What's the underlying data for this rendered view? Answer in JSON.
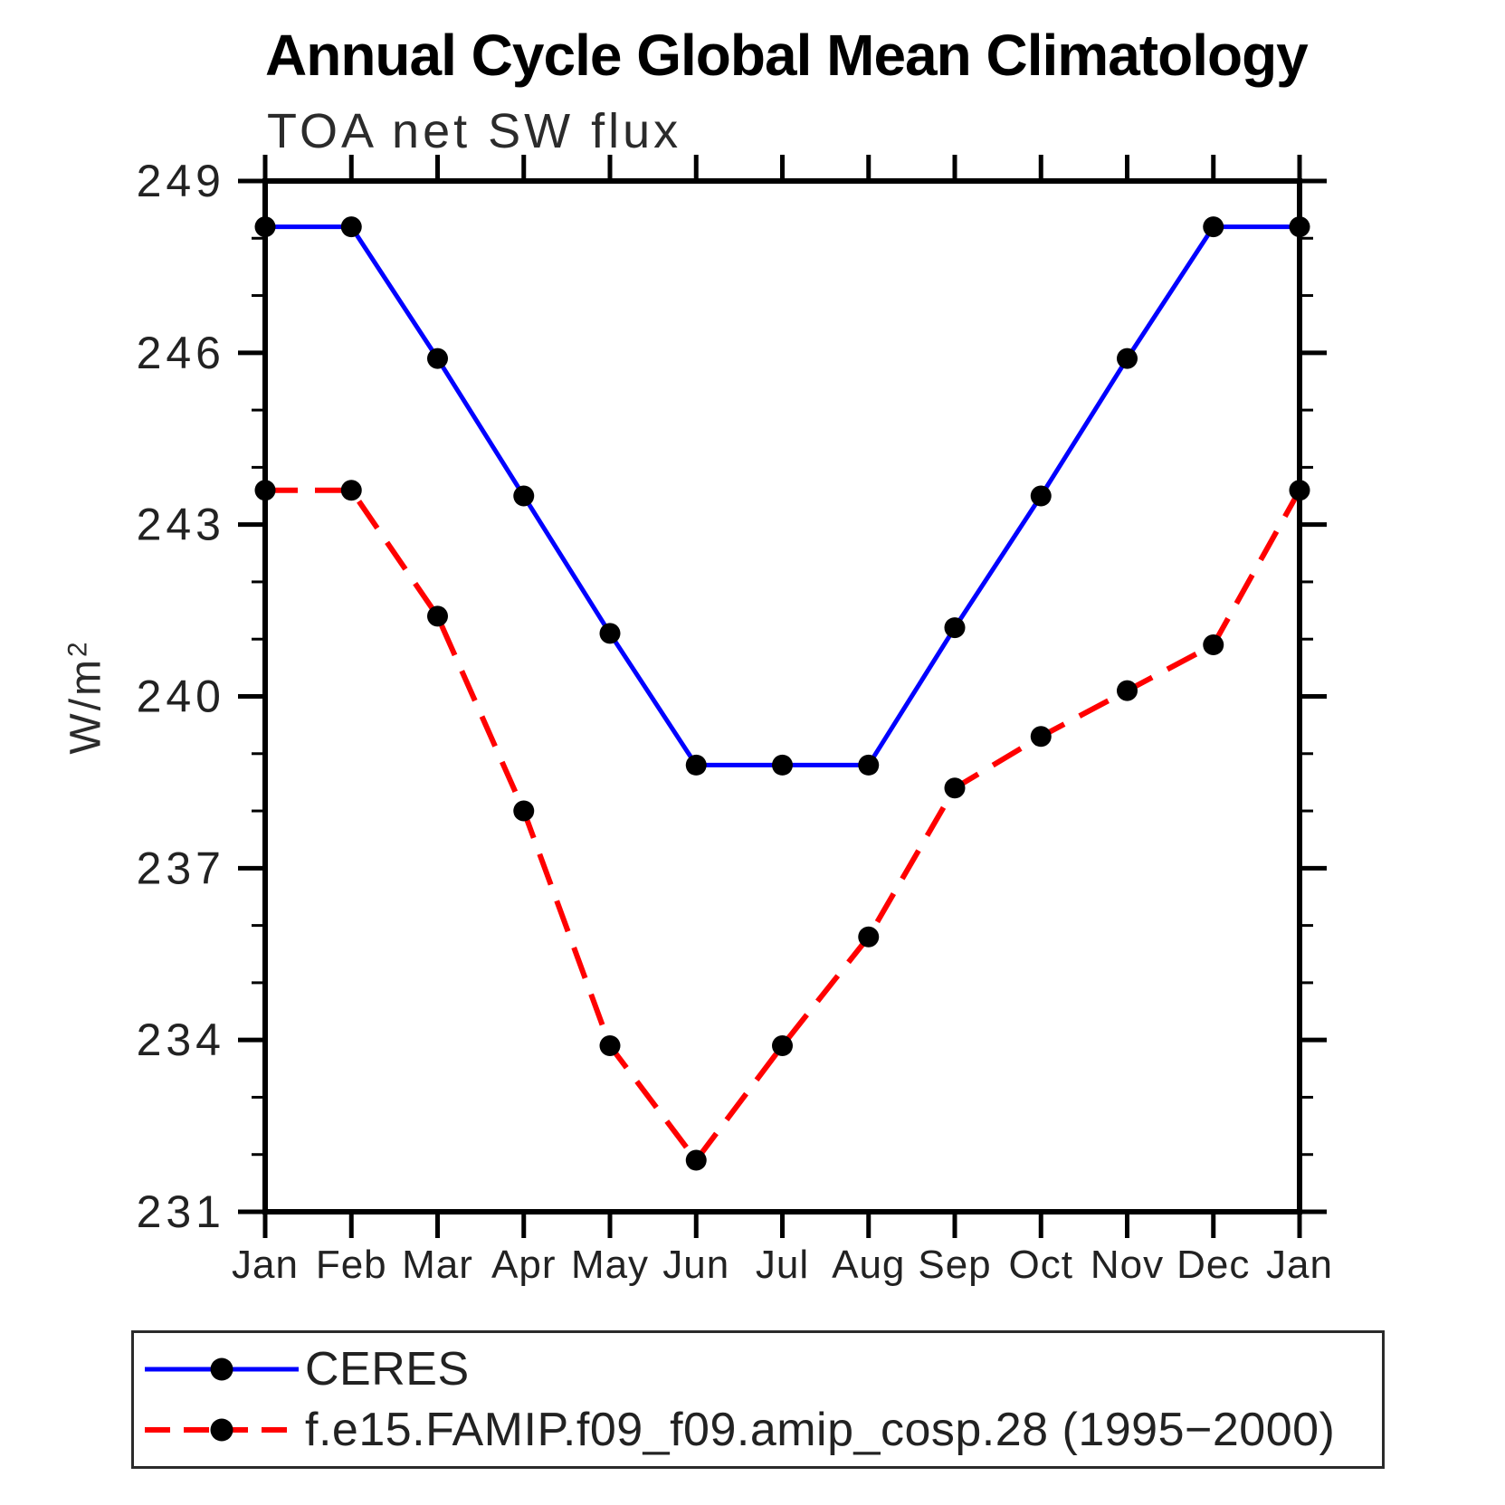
{
  "chart_data": {
    "type": "line",
    "title": "Annual Cycle Global Mean Climatology",
    "subtitle": "TOA net SW flux",
    "ylabel": "W/m²",
    "xlabel": "",
    "categories": [
      "Jan",
      "Feb",
      "Mar",
      "Apr",
      "May",
      "Jun",
      "Jul",
      "Aug",
      "Sep",
      "Oct",
      "Nov",
      "Dec",
      "Jan"
    ],
    "ylim": [
      231,
      249
    ],
    "yticks_major": [
      231,
      234,
      237,
      240,
      243,
      246,
      249
    ],
    "ytick_minor_step": 1,
    "grid": false,
    "legend_position": "bottom",
    "axis_color": "#000000",
    "marker": "filled-circle",
    "marker_color": "#000000",
    "series": [
      {
        "name": "CERES",
        "color": "#0000ff",
        "line_style": "solid",
        "values": [
          248.2,
          248.2,
          245.9,
          243.5,
          241.1,
          238.8,
          238.8,
          238.8,
          241.2,
          243.5,
          245.9,
          248.2,
          248.2
        ]
      },
      {
        "name": "f.e15.FAMIP.f09_f09.amip_cosp.28 (1995−2000)",
        "color": "#ff0000",
        "line_style": "dashed",
        "values": [
          243.6,
          243.6,
          241.4,
          238.0,
          233.9,
          231.9,
          233.9,
          235.8,
          238.4,
          239.3,
          240.1,
          240.9,
          243.6
        ]
      }
    ]
  }
}
